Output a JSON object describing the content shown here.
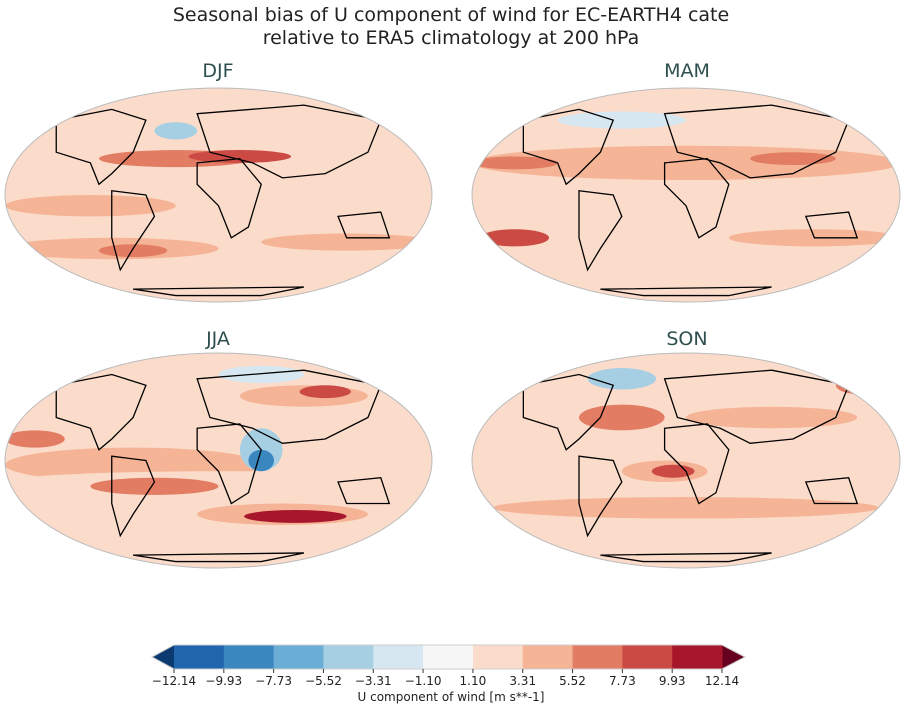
{
  "title_line1": "Seasonal bias of U component of wind for EC-EARTH4 cate",
  "title_line2": "relative to ERA5 climatology at 200 hPa",
  "panels": [
    {
      "label": "DJF"
    },
    {
      "label": "MAM"
    },
    {
      "label": "JJA"
    },
    {
      "label": "SON"
    }
  ],
  "colorbar": {
    "label": "U component of wind [m s**-1]",
    "ticks": [
      "−12.14",
      "−9.93",
      "−7.73",
      "−5.52",
      "−3.31",
      "−1.10",
      "1.10",
      "3.31",
      "5.52",
      "7.73",
      "9.93",
      "12.14"
    ],
    "extend": "both",
    "colors": [
      "#2166ac",
      "#3a87c0",
      "#6aaed6",
      "#a7cfe4",
      "#d6e7f1",
      "#f7f7f7",
      "#fbdccb",
      "#f5b496",
      "#e27c63",
      "#cb4a43",
      "#a7172c"
    ],
    "under_color": "#0a3a70",
    "over_color": "#67001f"
  }
}
